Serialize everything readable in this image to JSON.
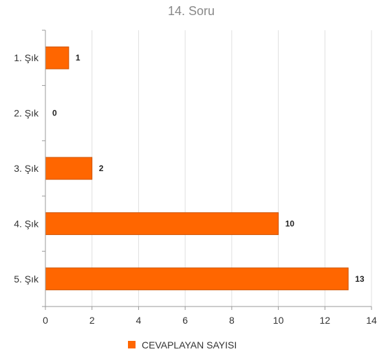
{
  "chart_data": {
    "type": "bar",
    "orientation": "horizontal",
    "title": "14. Soru",
    "categories": [
      "1. Şık",
      "2. Şık",
      "3. Şık",
      "4. Şık",
      "5. Şık"
    ],
    "series": [
      {
        "name": "CEVAPLAYAN SAYISI",
        "values": [
          1,
          0,
          2,
          10,
          13
        ]
      }
    ],
    "xlim": [
      0,
      14
    ],
    "x_ticks": [
      "0",
      "2",
      "4",
      "6",
      "8",
      "10",
      "12",
      "14"
    ],
    "grid": true,
    "legend_position": "bottom",
    "colors": {
      "bar": "#ff6600",
      "bar_border": "#cc5200",
      "grid": "#e0e0e0",
      "axis": "#999999",
      "title": "#888888"
    }
  }
}
